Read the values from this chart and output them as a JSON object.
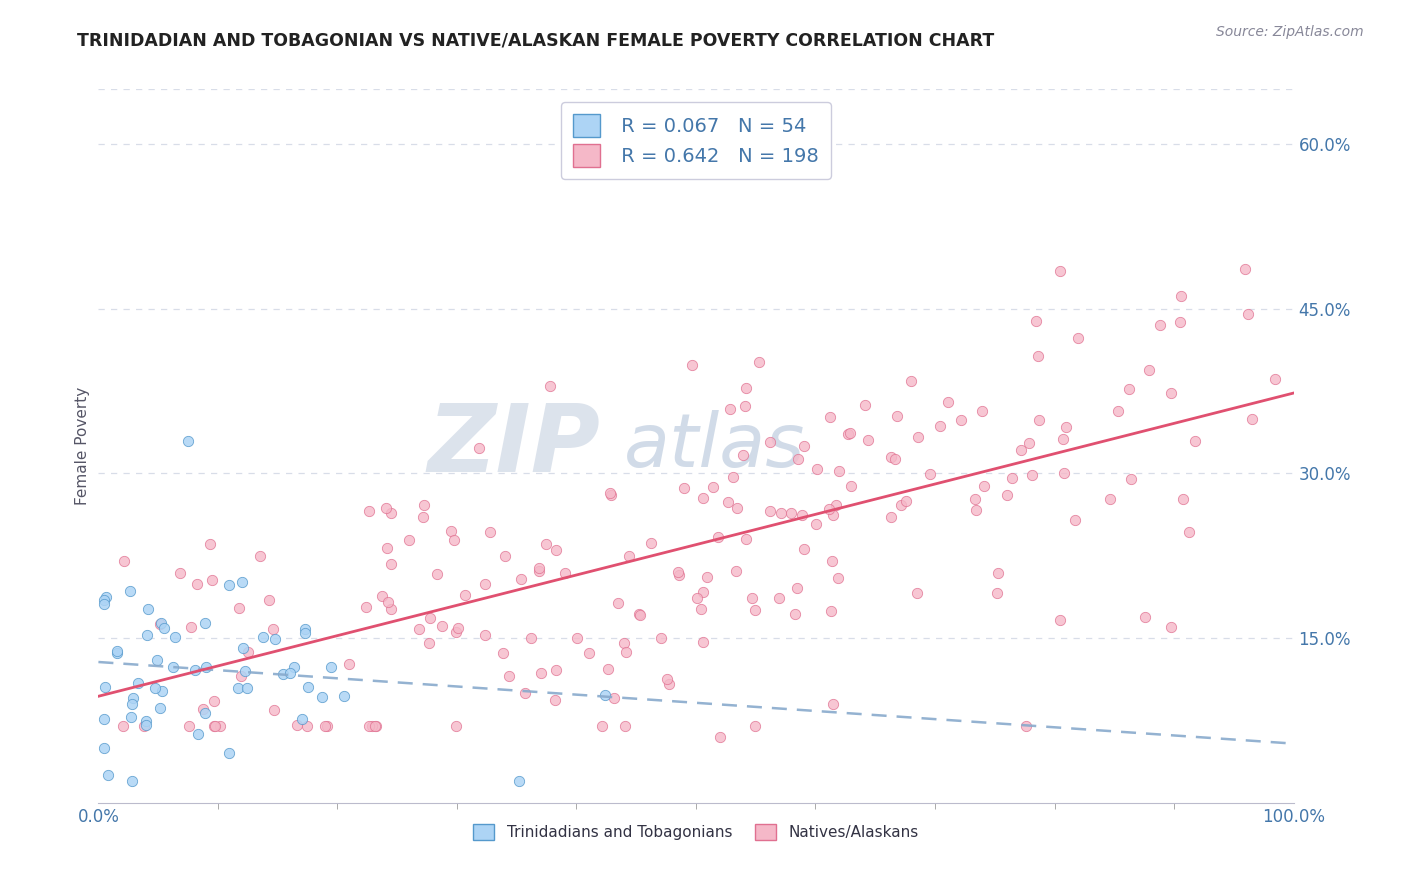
{
  "title": "TRINIDADIAN AND TOBAGONIAN VS NATIVE/ALASKAN FEMALE POVERTY CORRELATION CHART",
  "source_text": "Source: ZipAtlas.com",
  "ylabel": "Female Poverty",
  "x_min": 0.0,
  "x_max": 1.0,
  "y_min": 0.0,
  "y_max": 0.65,
  "y_ticks": [
    0.15,
    0.3,
    0.45,
    0.6
  ],
  "y_tick_labels": [
    "15.0%",
    "30.0%",
    "45.0%",
    "60.0%"
  ],
  "x_tick_labels": [
    "0.0%",
    "100.0%"
  ],
  "legend_labels": [
    "Trinidadians and Tobagonians",
    "Natives/Alaskans"
  ],
  "blue_R": 0.067,
  "blue_N": 54,
  "pink_R": 0.642,
  "pink_N": 198,
  "blue_color": "#add4f5",
  "blue_edge": "#5599cc",
  "pink_color": "#f5b8c8",
  "pink_edge": "#e07090",
  "blue_line_color": "#88aacc",
  "pink_line_color": "#e05070",
  "background_color": "#ffffff",
  "grid_color": "#d8dde8",
  "title_color": "#222222",
  "axis_label_color": "#4477aa",
  "tick_color": "#4477aa",
  "watermark_color1": "#c0ccdd",
  "watermark_color2": "#9ab0cc"
}
